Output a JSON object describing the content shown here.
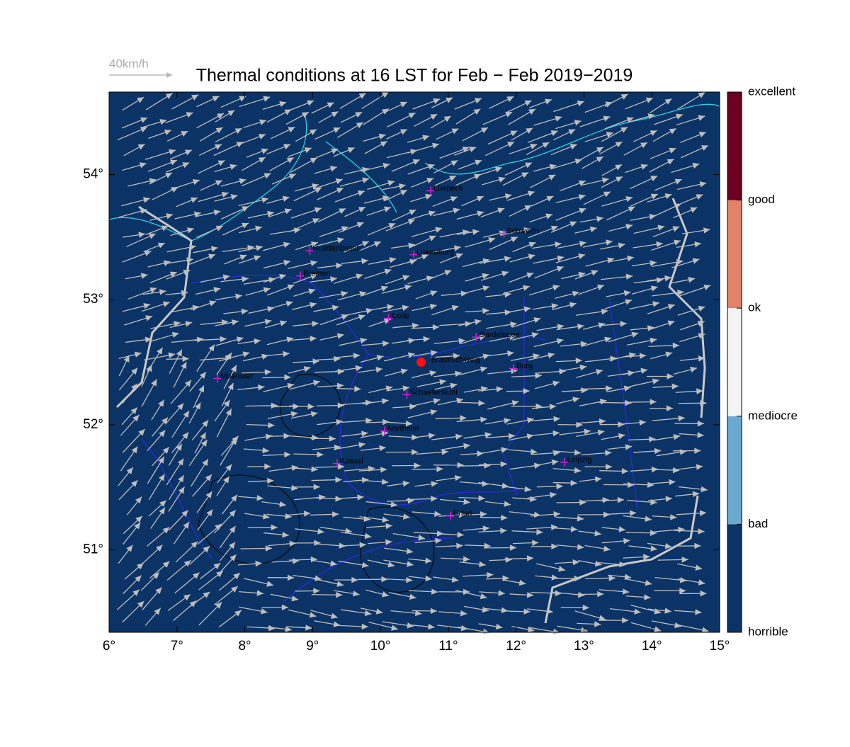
{
  "title": "Thermal conditions at 16 LST for Feb − Feb  2019−2019",
  "wind_scale": "40km/h",
  "xlim": [
    6,
    15
  ],
  "ylim": [
    50.34,
    54.66
  ],
  "xticks": [
    {
      "value": 6,
      "label": "6°"
    },
    {
      "value": 7,
      "label": "7°"
    },
    {
      "value": 8,
      "label": "8°"
    },
    {
      "value": 9,
      "label": "9°"
    },
    {
      "value": 10,
      "label": "10°"
    },
    {
      "value": 11,
      "label": "11°"
    },
    {
      "value": 12,
      "label": "12°"
    },
    {
      "value": 13,
      "label": "13°"
    },
    {
      "value": 14,
      "label": "14°"
    },
    {
      "value": 15,
      "label": "15°"
    }
  ],
  "yticks": [
    {
      "value": 51,
      "label": "51°"
    },
    {
      "value": 52,
      "label": "52°"
    },
    {
      "value": 53,
      "label": "53°"
    },
    {
      "value": 54,
      "label": "54°"
    }
  ],
  "colorbar": {
    "labels": [
      "horrible",
      "bad",
      "mediocre",
      "ok",
      "good",
      "excellent"
    ],
    "colors": [
      "#0b3366",
      "#6aa9d0",
      "#f4f4f4",
      "#e2826a",
      "#6b0020"
    ]
  },
  "cities": [
    {
      "name": "Luebeck",
      "lon": 10.74,
      "lat": 53.87
    },
    {
      "name": "Schwerin",
      "lon": 11.82,
      "lat": 53.53
    },
    {
      "name": "Lueneburg",
      "lon": 10.49,
      "lat": 53.36
    },
    {
      "name": "Huettenbusch",
      "lon": 8.96,
      "lat": 53.39
    },
    {
      "name": "Bremen",
      "lon": 8.82,
      "lat": 53.19
    },
    {
      "name": "Celle",
      "lon": 10.12,
      "lat": 52.85
    },
    {
      "name": "Gardelegen",
      "lon": 11.41,
      "lat": 52.7
    },
    {
      "name": "Burg",
      "lon": 11.96,
      "lat": 52.45
    },
    {
      "name": "Muenster",
      "lon": 7.6,
      "lat": 52.37
    },
    {
      "name": "Schaeferstuhl",
      "lon": 10.39,
      "lat": 52.24
    },
    {
      "name": "Northeim",
      "lon": 10.06,
      "lat": 51.95
    },
    {
      "name": "Kassel",
      "lon": 9.36,
      "lat": 51.69
    },
    {
      "name": "Leipzig",
      "lon": 12.71,
      "lat": 51.7
    },
    {
      "name": "Erfurt",
      "lon": 11.03,
      "lat": 51.27
    }
  ],
  "site": {
    "name": "Braunschweig",
    "lon": 10.6,
    "lat": 52.5
  }
}
